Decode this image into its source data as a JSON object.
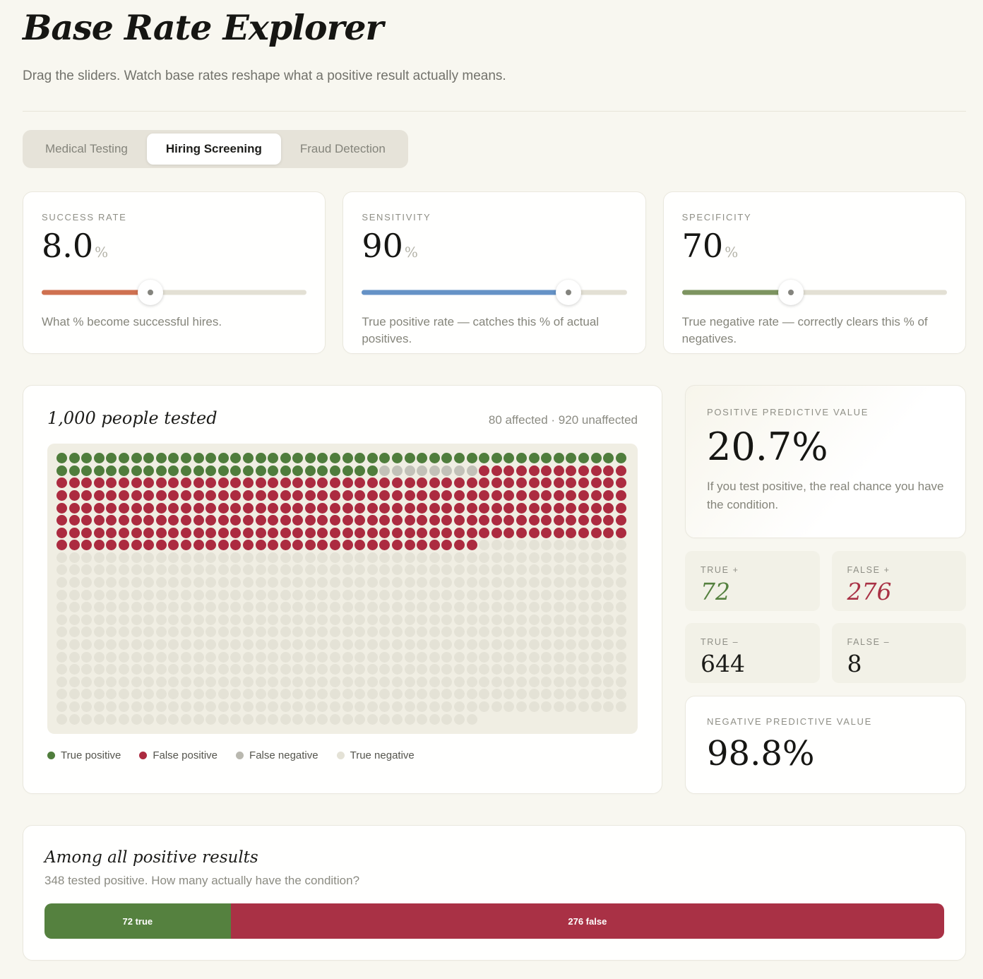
{
  "header": {
    "title": "Base Rate Explorer",
    "subtitle": "Drag the sliders. Watch base rates reshape what a positive result actually means."
  },
  "tabs": [
    {
      "label": "Medical Testing",
      "active": false
    },
    {
      "label": "Hiring Screening",
      "active": true
    },
    {
      "label": "Fraud Detection",
      "active": false
    }
  ],
  "sliders": [
    {
      "label": "SUCCESS RATE",
      "value": "8.0",
      "unit": "%",
      "fill_percent": 41,
      "color": "#cf7150",
      "description": "What % become successful hires."
    },
    {
      "label": "SENSITIVITY",
      "value": "90",
      "unit": "%",
      "fill_percent": 78,
      "color": "#6592c6",
      "description": "True positive rate — catches this % of actual positives."
    },
    {
      "label": "SPECIFICITY",
      "value": "70",
      "unit": "%",
      "fill_percent": 41,
      "color": "#7d9460",
      "description": "True negative rate — correctly clears this % of negatives."
    }
  ],
  "population": {
    "title": "1,000 people tested",
    "summary": "80 affected · 920 unaffected",
    "total": 1000,
    "per_row": 46,
    "grid_segments": [
      {
        "key": "true-positive",
        "count": 72,
        "color": "#4f7d3c"
      },
      {
        "key": "false-negative",
        "count": 8,
        "color": "#c2c1b8"
      },
      {
        "key": "false-positive",
        "count": 276,
        "color": "#ac2b40"
      },
      {
        "key": "true-negative",
        "count": 644,
        "color": "#e4e2d6"
      }
    ],
    "legend": [
      {
        "label": "True positive",
        "color": "#4f7d3c"
      },
      {
        "label": "False positive",
        "color": "#ac2b40"
      },
      {
        "label": "False negative",
        "color": "#b9b8af"
      },
      {
        "label": "True negative",
        "color": "#e4e2d6"
      }
    ]
  },
  "results": {
    "ppv": {
      "label": "POSITIVE PREDICTIVE VALUE",
      "value": "20.7%",
      "description": "If you test positive, the real chance you have the condition."
    },
    "stats": [
      {
        "label": "TRUE +",
        "value": "72",
        "color": "#55813f",
        "italic": true
      },
      {
        "label": "FALSE +",
        "value": "276",
        "color": "#a93145",
        "italic": true
      },
      {
        "label": "TRUE –",
        "value": "644",
        "color": "#1b1b18",
        "italic": false
      },
      {
        "label": "FALSE –",
        "value": "8",
        "color": "#1b1b18",
        "italic": false
      }
    ],
    "npv": {
      "label": "NEGATIVE PREDICTIVE VALUE",
      "value": "98.8%"
    }
  },
  "positives_bar": {
    "title": "Among all positive results",
    "subtitle": "348 tested positive. How many actually have the condition?",
    "true_label": "72 true",
    "true_percent": 20.7,
    "true_color": "#55813f",
    "false_label": "276 false",
    "false_percent": 79.3,
    "false_color": "#a93145"
  }
}
